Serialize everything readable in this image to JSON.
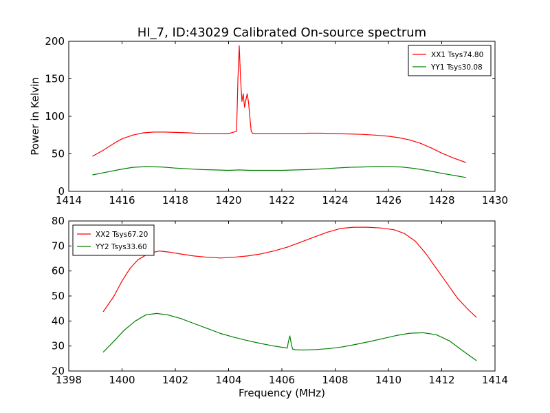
{
  "figure": {
    "title": "HI_7, ID:43029 Calibrated On-source spectrum"
  },
  "chart_data": [
    {
      "type": "line",
      "title": "HI_7, ID:43029 Calibrated On-source spectrum",
      "xlabel": "",
      "ylabel": "Power in Kelvin",
      "xlim": [
        1414,
        1430
      ],
      "ylim": [
        0,
        200
      ],
      "xticks": [
        "1414",
        "1416",
        "1418",
        "1420",
        "1422",
        "1424",
        "1426",
        "1428",
        "1430"
      ],
      "yticks": [
        "0",
        "50",
        "100",
        "150",
        "200"
      ],
      "legend_position": "top-right",
      "grid": false,
      "series": [
        {
          "name": "XX1 Tsys74.80",
          "color": "#ff0000",
          "x": [
            1414.9,
            1415.3,
            1415.7,
            1416.0,
            1416.4,
            1416.8,
            1417.2,
            1417.6,
            1418.0,
            1418.5,
            1419.0,
            1419.5,
            1420.0,
            1420.3,
            1420.35,
            1420.4,
            1420.45,
            1420.5,
            1420.55,
            1420.6,
            1420.65,
            1420.7,
            1420.75,
            1420.8,
            1420.85,
            1420.9,
            1421.0,
            1421.5,
            1422.0,
            1422.5,
            1423.0,
            1423.5,
            1424.0,
            1424.5,
            1425.0,
            1425.5,
            1426.0,
            1426.4,
            1426.8,
            1427.2,
            1427.6,
            1428.0,
            1428.4,
            1428.9
          ],
          "y": [
            47,
            55,
            64,
            70,
            75,
            78,
            79,
            79,
            78.5,
            78,
            77,
            77,
            77,
            80,
            150,
            194,
            150,
            120,
            130,
            112,
            122,
            130,
            118,
            98,
            80,
            77.5,
            77,
            77,
            77,
            77,
            77.5,
            77.5,
            77,
            76.5,
            76,
            75,
            73.5,
            71.5,
            68.5,
            64,
            58,
            51,
            45,
            38.5
          ]
        },
        {
          "name": "YY1 Tsys30.08",
          "color": "#008000",
          "x": [
            1414.9,
            1415.4,
            1415.9,
            1416.4,
            1416.9,
            1417.5,
            1418.0,
            1418.5,
            1419.0,
            1419.5,
            1420.0,
            1420.4,
            1420.8,
            1421.5,
            1422.0,
            1422.5,
            1423.0,
            1423.5,
            1424.0,
            1424.5,
            1425.0,
            1425.5,
            1426.0,
            1426.5,
            1427.0,
            1427.5,
            1428.0,
            1428.5,
            1428.9
          ],
          "y": [
            22,
            25.5,
            29,
            32,
            33,
            32.5,
            31,
            30,
            29,
            28.5,
            28,
            28.5,
            28,
            28,
            28,
            28.5,
            29,
            30,
            31,
            32,
            32.5,
            33,
            33,
            32.5,
            30.5,
            27.5,
            24,
            21,
            18.5
          ]
        }
      ]
    },
    {
      "type": "line",
      "title": "",
      "xlabel": "Frequency (MHz)",
      "ylabel": "",
      "xlim": [
        1398,
        1414
      ],
      "ylim": [
        20,
        80
      ],
      "xticks": [
        "1398",
        "1400",
        "1402",
        "1404",
        "1406",
        "1408",
        "1410",
        "1412",
        "1414"
      ],
      "yticks": [
        "20",
        "30",
        "40",
        "50",
        "60",
        "70",
        "80"
      ],
      "legend_position": "top-left",
      "grid": false,
      "series": [
        {
          "name": "XX2 Tsys67.20",
          "color": "#ff0000",
          "x": [
            1399.3,
            1399.7,
            1400.0,
            1400.3,
            1400.6,
            1401.0,
            1401.4,
            1401.8,
            1402.2,
            1402.7,
            1403.2,
            1403.7,
            1404.2,
            1404.7,
            1405.2,
            1405.7,
            1406.2,
            1406.7,
            1407.2,
            1407.7,
            1408.2,
            1408.7,
            1409.2,
            1409.7,
            1410.2,
            1410.6,
            1411.0,
            1411.4,
            1411.8,
            1412.2,
            1412.6,
            1413.0,
            1413.3
          ],
          "y": [
            43.8,
            50,
            56,
            61,
            64.5,
            67,
            68,
            67.5,
            66.8,
            66,
            65.5,
            65.2,
            65.5,
            66,
            66.8,
            68,
            69.5,
            71.5,
            73.5,
            75.5,
            77,
            77.5,
            77.5,
            77.2,
            76.5,
            75,
            72,
            67,
            61,
            55,
            49,
            44.5,
            41.5
          ]
        },
        {
          "name": "YY2 Tsys33.60",
          "color": "#008000",
          "x": [
            1399.3,
            1399.7,
            1400.1,
            1400.5,
            1400.9,
            1401.3,
            1401.7,
            1402.2,
            1402.7,
            1403.2,
            1403.7,
            1404.2,
            1404.7,
            1405.2,
            1405.7,
            1406.0,
            1406.2,
            1406.25,
            1406.3,
            1406.35,
            1406.4,
            1406.5,
            1406.8,
            1407.3,
            1407.8,
            1408.3,
            1408.8,
            1409.3,
            1409.8,
            1410.3,
            1410.8,
            1411.3,
            1411.8,
            1412.3,
            1412.8,
            1413.3
          ],
          "y": [
            27.6,
            32,
            36.5,
            40,
            42.5,
            43,
            42.5,
            41,
            39,
            37,
            35,
            33.5,
            32.2,
            31,
            30,
            29.5,
            29.2,
            32,
            34,
            31,
            28.8,
            28.5,
            28.4,
            28.6,
            29,
            29.7,
            30.7,
            31.8,
            33,
            34.2,
            35.1,
            35.3,
            34.5,
            32,
            28,
            24.2
          ]
        }
      ]
    }
  ]
}
